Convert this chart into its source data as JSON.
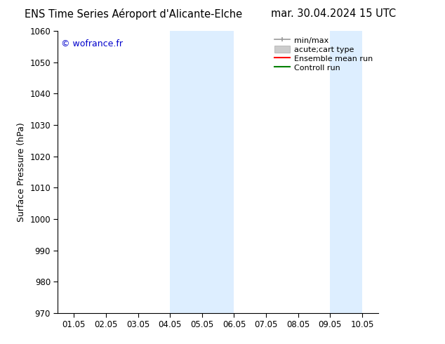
{
  "title_left": "ENS Time Series Aéroport d'Alicante-Elche",
  "title_right": "mar. 30.04.2024 15 UTC",
  "ylabel": "Surface Pressure (hPa)",
  "watermark": "© wofrance.fr",
  "watermark_color": "#0000cc",
  "ylim": [
    970,
    1060
  ],
  "yticks": [
    970,
    980,
    990,
    1000,
    1010,
    1020,
    1030,
    1040,
    1050,
    1060
  ],
  "xtick_labels": [
    "01.05",
    "02.05",
    "03.05",
    "04.05",
    "05.05",
    "06.05",
    "07.05",
    "08.05",
    "09.05",
    "10.05"
  ],
  "x_values": [
    0,
    1,
    2,
    3,
    4,
    5,
    6,
    7,
    8,
    9
  ],
  "xlim": [
    -0.5,
    9.5
  ],
  "bg_color": "#ffffff",
  "plot_bg_color": "#ffffff",
  "shaded_regions": [
    {
      "x_start": 3,
      "x_end": 5,
      "color": "#ddeeff"
    },
    {
      "x_start": 8,
      "x_end": 9,
      "color": "#ddeeff"
    }
  ],
  "legend_entries": [
    {
      "label": "min/max",
      "color": "#999999",
      "lw": 1.2,
      "ls": "-",
      "type": "minmax"
    },
    {
      "label": "acute;cart type",
      "color": "#cccccc",
      "lw": 8,
      "ls": "-",
      "type": "bar"
    },
    {
      "label": "Ensemble mean run",
      "color": "#ff0000",
      "lw": 1.5,
      "ls": "-",
      "type": "line"
    },
    {
      "label": "Controll run",
      "color": "#008000",
      "lw": 1.5,
      "ls": "-",
      "type": "line"
    }
  ],
  "title_fontsize": 10.5,
  "tick_fontsize": 8.5,
  "ylabel_fontsize": 9,
  "legend_fontsize": 8,
  "watermark_fontsize": 9
}
